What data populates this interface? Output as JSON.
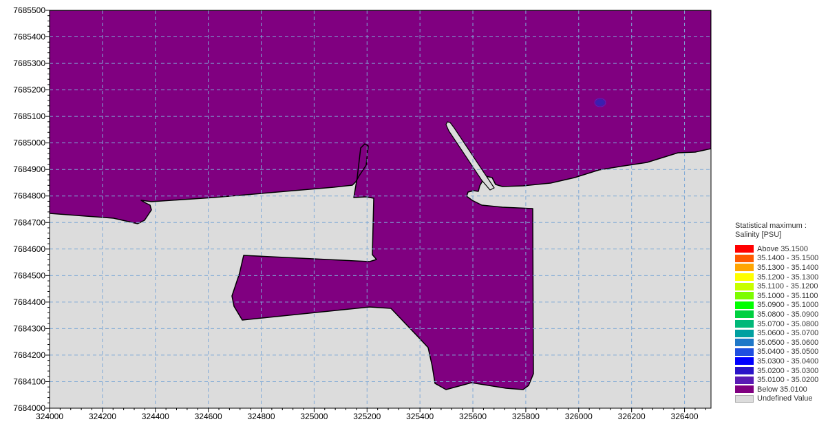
{
  "map": {
    "land_color": "#dcdcdc",
    "water_color": "#800080",
    "grid_color": "#7fa9d6",
    "hotspot_color": "#3a1fb0",
    "x_ticks": [
      324000,
      324200,
      324400,
      324600,
      324800,
      325000,
      325200,
      325400,
      325600,
      325800,
      326000,
      326200,
      326400
    ],
    "y_ticks": [
      7684000,
      7684100,
      7684200,
      7684300,
      7684400,
      7684500,
      7684600,
      7684700,
      7684800,
      7684900,
      7685000,
      7685100,
      7685200,
      7685300,
      7685400,
      7685500
    ],
    "x_range": [
      324000,
      326500
    ],
    "y_range": [
      7684000,
      7685500
    ]
  },
  "legend": {
    "title_line1": "Statistical maximum :",
    "title_line2": "Salinity [PSU]",
    "items": [
      {
        "label": "Above    35.1500",
        "color": "#ff0000"
      },
      {
        "label": "35.1400 - 35.1500",
        "color": "#ff5a00"
      },
      {
        "label": "35.1300 - 35.1400",
        "color": "#ffa500"
      },
      {
        "label": "35.1200 - 35.1300",
        "color": "#ffff00"
      },
      {
        "label": "35.1100 - 35.1200",
        "color": "#c8ff00"
      },
      {
        "label": "35.1000 - 35.1100",
        "color": "#7cfc00"
      },
      {
        "label": "35.0900 - 35.1000",
        "color": "#00ff00"
      },
      {
        "label": "35.0800 - 35.0900",
        "color": "#00d040"
      },
      {
        "label": "35.0700 - 35.0800",
        "color": "#00b878"
      },
      {
        "label": "35.0600 - 35.0700",
        "color": "#00a0a0"
      },
      {
        "label": "35.0500 - 35.0600",
        "color": "#1f78c8"
      },
      {
        "label": "35.0400 - 35.0500",
        "color": "#1f4fe0"
      },
      {
        "label": "35.0300 - 35.0400",
        "color": "#0000ff"
      },
      {
        "label": "35.0200 - 35.0300",
        "color": "#2a14c8"
      },
      {
        "label": "35.0100 - 35.0200",
        "color": "#5a1ab4"
      },
      {
        "label": "Below    35.0100",
        "color": "#800080"
      },
      {
        "label": "Undefined Value",
        "color": "#dcdcdc"
      }
    ]
  }
}
